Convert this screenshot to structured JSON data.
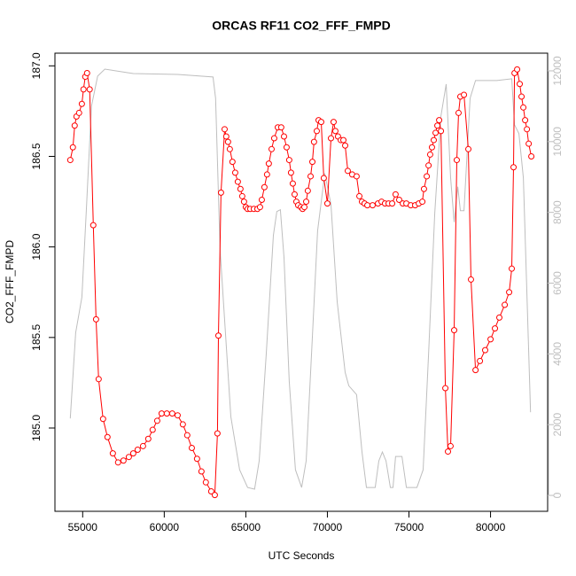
{
  "chart_data": {
    "type": "line",
    "title": "ORCAS RF11 CO2_FFF_FMPD",
    "xlabel": "UTC Seconds",
    "ylabel": "CO2_FFF_FMPD",
    "xlim": [
      53300,
      83500
    ],
    "ylim": [
      184.54,
      187.07
    ],
    "y2lim": [
      -450,
      12500
    ],
    "xticks": [
      55000,
      60000,
      65000,
      70000,
      75000,
      80000
    ],
    "yticks": [
      {
        "value": 185,
        "label": "185.0"
      },
      185.5,
      {
        "value": 186,
        "label": "186.0"
      },
      186.5,
      {
        "value": 187,
        "label": "187.0"
      }
    ],
    "y2ticks": [
      0,
      2000,
      4000,
      6000,
      8000,
      10000,
      12000
    ],
    "series": [
      {
        "color": "#ff0000",
        "marker": "circle",
        "x": [
          54240,
          54400,
          54510,
          54620,
          54780,
          54950,
          55050,
          55160,
          55270,
          55430,
          55650,
          55820,
          55980,
          56250,
          56520,
          56850,
          57170,
          57500,
          57830,
          58100,
          58370,
          58700,
          59020,
          59290,
          59570,
          59840,
          60160,
          60490,
          60820,
          61140,
          61410,
          61690,
          62010,
          62280,
          62550,
          62880,
          63100,
          63260,
          63320,
          63480,
          63700,
          63800,
          63910,
          64020,
          64180,
          64350,
          64510,
          64670,
          64780,
          64890,
          65000,
          65110,
          65270,
          65490,
          65710,
          65870,
          65980,
          66140,
          66300,
          66410,
          66580,
          66740,
          66960,
          67170,
          67340,
          67500,
          67660,
          67770,
          67880,
          67990,
          68100,
          68210,
          68370,
          68480,
          68590,
          68700,
          68800,
          68970,
          69080,
          69180,
          69350,
          69460,
          69620,
          69780,
          70000,
          70220,
          70380,
          70490,
          70650,
          70820,
          70980,
          71090,
          71250,
          71520,
          71790,
          71960,
          72120,
          72280,
          72450,
          72770,
          73100,
          73320,
          73530,
          73750,
          73970,
          74180,
          74400,
          74620,
          74840,
          75110,
          75380,
          75600,
          75820,
          75920,
          76090,
          76200,
          76300,
          76410,
          76520,
          76630,
          76740,
          76850,
          76960,
          77230,
          77390,
          77550,
          77770,
          77930,
          78040,
          78150,
          78370,
          78640,
          78800,
          79080,
          79350,
          79670,
          80000,
          80270,
          80540,
          80870,
          81140,
          81300,
          81410,
          81470,
          81630,
          81790,
          81900,
          82010,
          82120,
          82230,
          82340,
          82500
        ],
        "values": [
          186.48,
          186.55,
          186.67,
          186.72,
          186.74,
          186.79,
          186.87,
          186.94,
          186.96,
          186.87,
          186.12,
          185.6,
          185.27,
          185.05,
          184.95,
          184.86,
          184.81,
          184.82,
          184.84,
          184.86,
          184.88,
          184.9,
          184.94,
          184.99,
          185.04,
          185.08,
          185.08,
          185.08,
          185.07,
          185.02,
          184.96,
          184.89,
          184.83,
          184.76,
          184.7,
          184.65,
          184.63,
          184.97,
          185.51,
          186.3,
          186.65,
          186.61,
          186.58,
          186.54,
          186.47,
          186.41,
          186.36,
          186.32,
          186.28,
          186.25,
          186.22,
          186.21,
          186.21,
          186.21,
          186.21,
          186.22,
          186.26,
          186.33,
          186.4,
          186.46,
          186.54,
          186.6,
          186.66,
          186.66,
          186.61,
          186.55,
          186.48,
          186.41,
          186.35,
          186.29,
          186.25,
          186.23,
          186.22,
          186.21,
          186.22,
          186.25,
          186.31,
          186.39,
          186.47,
          186.58,
          186.64,
          186.7,
          186.69,
          186.38,
          186.24,
          186.6,
          186.69,
          186.64,
          186.61,
          186.59,
          186.59,
          186.56,
          186.42,
          186.4,
          186.39,
          186.28,
          186.25,
          186.24,
          186.23,
          186.23,
          186.24,
          186.25,
          186.24,
          186.24,
          186.24,
          186.29,
          186.26,
          186.24,
          186.24,
          186.23,
          186.23,
          186.24,
          186.25,
          186.32,
          186.39,
          186.45,
          186.51,
          186.55,
          186.59,
          186.63,
          186.67,
          186.7,
          186.64,
          185.22,
          184.87,
          184.9,
          185.54,
          186.48,
          186.74,
          186.83,
          186.84,
          186.54,
          185.82,
          185.32,
          185.37,
          185.43,
          185.49,
          185.55,
          185.61,
          185.68,
          185.75,
          185.88,
          186.44,
          186.96,
          186.98,
          186.9,
          186.83,
          186.77,
          186.7,
          186.65,
          186.57,
          186.5
        ]
      },
      {
        "color": "#bebebe",
        "axis": "y2",
        "x": [
          54240,
          54570,
          54950,
          55220,
          55540,
          55920,
          56360,
          58100,
          60820,
          62990,
          63150,
          63420,
          64080,
          64620,
          65110,
          65540,
          65820,
          66250,
          66690,
          66900,
          67120,
          67340,
          67660,
          68040,
          68420,
          68700,
          69080,
          69400,
          69840,
          70220,
          70600,
          71090,
          71310,
          71790,
          72120,
          72390,
          72930,
          73150,
          73370,
          73590,
          73860,
          74020,
          74180,
          74350,
          74570,
          74840,
          75490,
          75870,
          76200,
          76580,
          76960,
          77280,
          77550,
          77770,
          77990,
          78150,
          78370,
          78750,
          79080,
          80380,
          81300,
          81470,
          81740,
          82010,
          82450
        ],
        "values": [
          2175,
          4600,
          5600,
          8000,
          11000,
          11850,
          12050,
          11925,
          11900,
          11825,
          11225,
          6975,
          2225,
          725,
          225,
          175,
          975,
          3975,
          7350,
          8025,
          8075,
          6725,
          3225,
          725,
          225,
          975,
          4475,
          7475,
          9100,
          8225,
          5475,
          3475,
          3100,
          2850,
          1225,
          225,
          225,
          975,
          1225,
          975,
          225,
          225,
          1100,
          1100,
          1100,
          225,
          225,
          725,
          3975,
          7975,
          10725,
          11625,
          8975,
          7725,
          8725,
          8050,
          8050,
          11225,
          11725,
          11725,
          11775,
          10475,
          10225,
          8975,
          2350
        ]
      }
    ]
  }
}
